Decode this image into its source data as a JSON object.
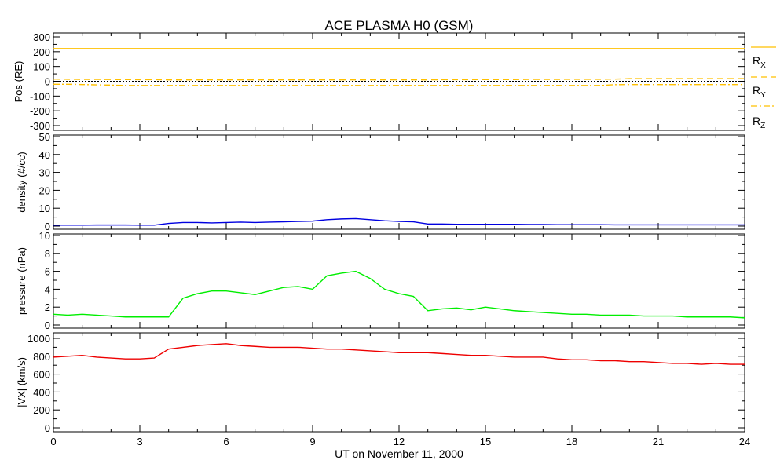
{
  "chart_data": {
    "type": "line",
    "title": "ACE PLASMA H0 (GSM)",
    "xlabel": "UT on November 11, 2000",
    "xlim": [
      0,
      24
    ],
    "xticks": [
      "0",
      "3",
      "6",
      "9",
      "12",
      "15",
      "18",
      "21",
      "24"
    ],
    "x": [
      0,
      0.5,
      1,
      1.5,
      2,
      2.5,
      3,
      3.5,
      4,
      4.5,
      5,
      5.5,
      6,
      6.5,
      7,
      7.5,
      8,
      8.5,
      9,
      9.5,
      10,
      10.5,
      11,
      11.5,
      12,
      12.5,
      13,
      13.5,
      14,
      14.5,
      15,
      15.5,
      16,
      16.5,
      17,
      17.5,
      18,
      18.5,
      19,
      19.5,
      20,
      20.5,
      21,
      21.5,
      22,
      22.5,
      23,
      23.5,
      24
    ],
    "panels": [
      {
        "ylabel": "Pos (RE)",
        "ylim": [
          -300,
          300
        ],
        "yticks": [
          "300",
          "200",
          "100",
          "0",
          "-100",
          "-200",
          "-300"
        ],
        "series": [
          {
            "name": "RX",
            "style": "solid",
            "color": "#ffc000",
            "values": [
              221,
              221,
              221,
              221,
              221,
              221,
              221,
              221,
              221,
              221,
              221,
              221,
              221,
              221,
              221,
              221,
              221,
              221,
              221,
              221,
              221,
              221,
              221,
              221,
              221,
              221,
              221,
              221,
              221,
              221,
              221,
              221,
              221,
              221,
              221,
              221,
              221,
              221,
              221,
              221,
              221,
              221,
              221,
              221,
              221,
              221,
              221,
              221,
              221
            ]
          },
          {
            "name": "RY",
            "style": "dashed",
            "color": "#ffc000",
            "values": [
              15,
              14,
              13,
              13,
              12,
              12,
              11,
              11,
              10,
              10,
              10,
              10,
              10,
              10,
              10,
              10,
              10,
              10,
              10,
              10,
              10,
              10,
              10,
              10,
              10,
              10,
              10,
              11,
              11,
              11,
              12,
              12,
              12,
              13,
              13,
              13,
              14,
              14,
              14,
              15,
              18,
              18,
              18,
              18,
              18,
              18,
              18,
              18,
              18
            ]
          },
          {
            "name": "RZ",
            "style": "dashdot",
            "color": "#ffc000",
            "values": [
              -20,
              -20,
              -22,
              -24,
              -26,
              -28,
              -28,
              -28,
              -28,
              -28,
              -28,
              -28,
              -28,
              -28,
              -28,
              -28,
              -28,
              -28,
              -28,
              -28,
              -28,
              -28,
              -28,
              -28,
              -28,
              -28,
              -28,
              -28,
              -28,
              -28,
              -28,
              -28,
              -28,
              -28,
              -28,
              -28,
              -28,
              -28,
              -28,
              -23,
              -22,
              -22,
              -22,
              -22,
              -22,
              -22,
              -22,
              -22,
              -22
            ]
          }
        ]
      },
      {
        "ylabel": "density (#/cc)",
        "ylim": [
          0,
          50
        ],
        "yticks": [
          "50",
          "40",
          "30",
          "20",
          "10",
          "0"
        ],
        "series": [
          {
            "name": "density",
            "color": "#0000e0",
            "values": [
              0.5,
              0.5,
              0.5,
              0.6,
              0.6,
              0.6,
              0.5,
              0.5,
              1.5,
              2,
              2,
              1.8,
              2,
              2.2,
              2,
              2.2,
              2.4,
              2.6,
              2.8,
              3.6,
              4,
              4.2,
              3.6,
              3,
              2.6,
              2.4,
              1.2,
              1.2,
              1,
              1,
              1,
              1,
              1,
              0.9,
              0.9,
              0.8,
              0.8,
              0.8,
              0.8,
              0.7,
              0.7,
              0.7,
              0.7,
              0.7,
              0.7,
              0.7,
              0.7,
              0.7,
              0.7
            ]
          }
        ]
      },
      {
        "ylabel": "pressure (nPa)",
        "ylim": [
          0,
          10
        ],
        "yticks": [
          "10",
          "8",
          "6",
          "4",
          "2",
          "0"
        ],
        "series": [
          {
            "name": "pressure",
            "color": "#00ee00",
            "values": [
              1.2,
              1.1,
              1.2,
              1.1,
              1.0,
              0.9,
              0.9,
              0.9,
              0.9,
              3.0,
              3.5,
              3.8,
              3.8,
              3.6,
              3.4,
              3.8,
              4.2,
              4.3,
              4.0,
              5.5,
              5.8,
              6.0,
              5.2,
              4.0,
              3.5,
              3.2,
              1.6,
              1.8,
              1.9,
              1.7,
              2.0,
              1.8,
              1.6,
              1.5,
              1.4,
              1.3,
              1.2,
              1.2,
              1.1,
              1.1,
              1.1,
              1.0,
              1.0,
              1.0,
              0.9,
              0.9,
              0.9,
              0.9,
              0.8
            ]
          }
        ]
      },
      {
        "ylabel": "|VX| (km/s)",
        "ylim": [
          0,
          1000
        ],
        "yticks": [
          "1000",
          "800",
          "600",
          "400",
          "200",
          "0"
        ],
        "series": [
          {
            "name": "VX",
            "color": "#ee0000",
            "values": [
              790,
              800,
              810,
              790,
              780,
              770,
              770,
              780,
              880,
              900,
              920,
              930,
              940,
              920,
              910,
              900,
              900,
              900,
              890,
              880,
              880,
              870,
              860,
              850,
              840,
              840,
              840,
              830,
              820,
              810,
              810,
              800,
              790,
              790,
              790,
              770,
              760,
              760,
              750,
              750,
              740,
              740,
              730,
              720,
              720,
              710,
              720,
              710,
              710
            ]
          }
        ]
      }
    ],
    "legend": [
      "RX",
      "RY",
      "RZ"
    ]
  }
}
